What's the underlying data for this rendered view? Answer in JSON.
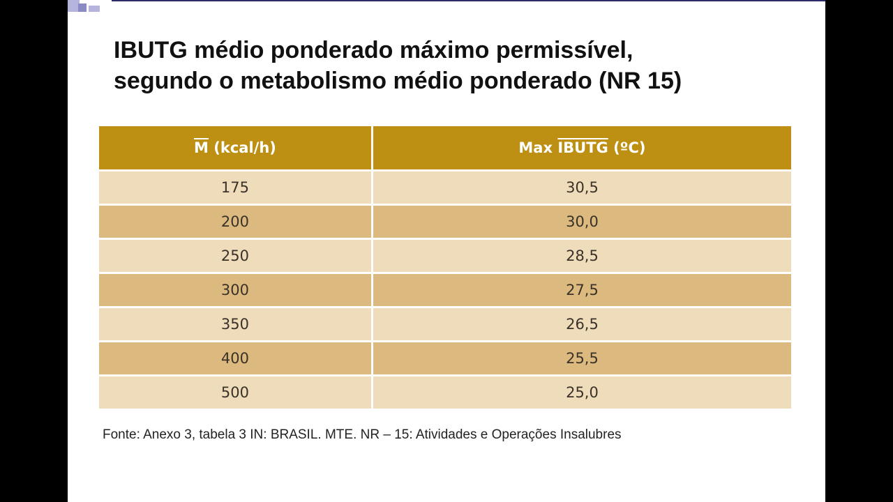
{
  "title": {
    "line1": "IBUTG médio ponderado máximo permissível,",
    "line2": "segundo o metabolismo médio ponderado (NR 15)"
  },
  "table": {
    "header_col1_symbol": "M",
    "header_col1_unit": " (kcal/h)",
    "header_col2_prefix": "Max ",
    "header_col2_symbol": "IBUTG",
    "header_col2_unit": " (ºC)",
    "rows": [
      {
        "m": "175",
        "ibutg": "30,5"
      },
      {
        "m": "200",
        "ibutg": "30,0"
      },
      {
        "m": "250",
        "ibutg": "28,5"
      },
      {
        "m": "300",
        "ibutg": "27,5"
      },
      {
        "m": "350",
        "ibutg": "26,5"
      },
      {
        "m": "400",
        "ibutg": "25,5"
      },
      {
        "m": "500",
        "ibutg": "25,0"
      }
    ]
  },
  "source": "Fonte: Anexo 3, tabela 3 IN: BRASIL. MTE. NR – 15: Atividades e Operações Insalubres",
  "colors": {
    "header": "#bd9013",
    "row_light": "#efdcbb",
    "row_dark": "#dcb97f"
  }
}
